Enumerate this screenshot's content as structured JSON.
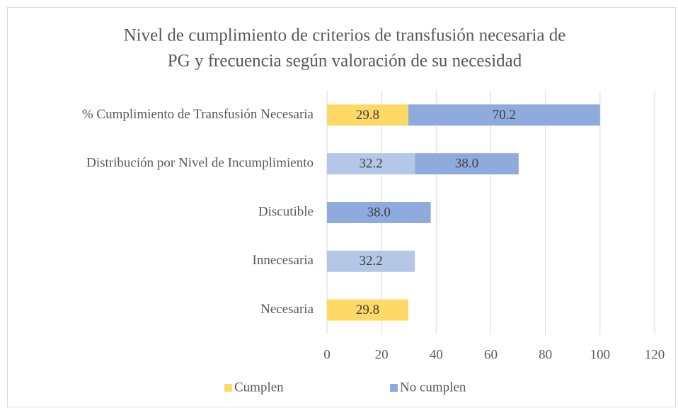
{
  "chart_data": {
    "type": "stacked-barh",
    "title": [
      "Nivel de cumplimiento de criterios de transfusión necesaria de",
      "PG y frecuencia según valoración de  su necesidad"
    ],
    "categories": [
      "% Cumplimiento de Transfusión Necesaria",
      "Distribución por Nivel de Incumplimiento",
      "Discutible",
      "Innecesaria",
      "Necesaria"
    ],
    "series": [
      {
        "name": "Cumplen",
        "color": "#ffd966",
        "values": [
          29.8,
          null,
          null,
          null,
          29.8
        ]
      },
      {
        "name": null,
        "color": "#b4c7e7",
        "values": [
          null,
          32.2,
          null,
          32.2,
          null
        ]
      },
      {
        "name": "No cumplen",
        "color": "#8faadc",
        "values": [
          70.2,
          38,
          38,
          null,
          null
        ],
        "value_labels": [
          "70.2",
          "38.0",
          "38.0",
          null,
          null
        ]
      }
    ],
    "xlim": [
      0,
      120
    ],
    "xticks": [
      0,
      20,
      40,
      60,
      80,
      100,
      120
    ],
    "grid": true,
    "legend": "bottom"
  }
}
